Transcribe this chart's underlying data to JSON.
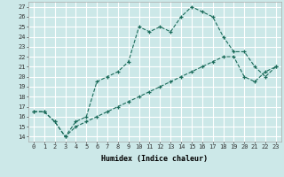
{
  "xlabel": "Humidex (Indice chaleur)",
  "background_color": "#cce8e8",
  "grid_color": "#ffffff",
  "line_color": "#1a6b5a",
  "xlim": [
    -0.5,
    23.5
  ],
  "ylim": [
    13.5,
    27.5
  ],
  "xtick_labels": [
    "0",
    "1",
    "2",
    "3",
    "4",
    "5",
    "6",
    "7",
    "8",
    "9",
    "10",
    "11",
    "12",
    "13",
    "14",
    "15",
    "16",
    "17",
    "18",
    "19",
    "20",
    "21",
    "22",
    "23"
  ],
  "ytick_labels": [
    "14",
    "15",
    "16",
    "17",
    "18",
    "19",
    "20",
    "21",
    "22",
    "23",
    "24",
    "25",
    "26",
    "27"
  ],
  "series1_x": [
    0,
    1,
    2,
    3,
    4,
    5,
    6,
    7,
    8,
    9,
    10,
    11,
    12,
    13,
    14,
    15,
    16,
    17,
    18,
    19,
    20,
    21,
    22,
    23
  ],
  "series1_y": [
    16.5,
    16.5,
    15.5,
    14.0,
    15.5,
    16.0,
    19.5,
    20.0,
    20.5,
    21.5,
    25.0,
    24.5,
    25.0,
    24.5,
    26.0,
    27.0,
    26.5,
    26.0,
    24.0,
    22.5,
    22.5,
    21.0,
    20.0,
    21.0
  ],
  "series2_x": [
    0,
    1,
    2,
    3,
    4,
    5,
    6,
    7,
    8,
    9,
    10,
    11,
    12,
    13,
    14,
    15,
    16,
    17,
    18,
    19,
    20,
    21,
    22,
    23
  ],
  "series2_y": [
    16.5,
    16.5,
    15.5,
    14.0,
    15.0,
    15.5,
    16.0,
    16.5,
    17.0,
    17.5,
    18.0,
    18.5,
    19.0,
    19.5,
    20.0,
    20.5,
    21.0,
    21.5,
    22.0,
    22.0,
    20.0,
    19.5,
    20.5,
    21.0
  ]
}
